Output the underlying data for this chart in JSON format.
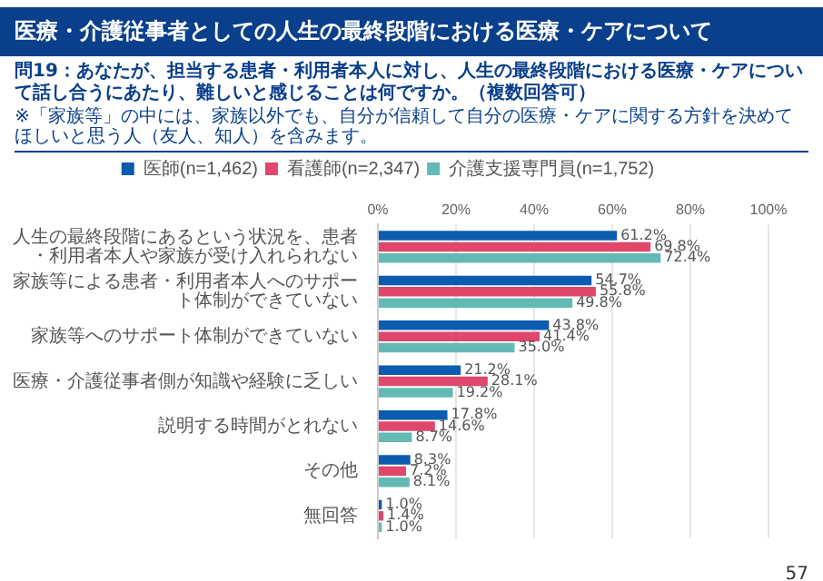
{
  "chart_data": {
    "type": "bar",
    "orientation": "horizontal",
    "title": "医療・介護従事者としての人生の最終段階における医療・ケアについて",
    "subtitle": "問19：あなたが、担当する患者・利用者本人に対し、人生の最終段階における医療・ケアについて話し合うにあたり、難しいと感じることは何ですか。（複数回答可）",
    "annotations": [
      "※「家族等」の中には、家族以外でも、自分が信頼して自分の医療・ケアに関する方針を決めてほしいと思う人（友人、知人）を含みます。",
      "57"
    ],
    "categories": [
      "人生の最終段階にあるという状況を、患者・利用者本人や家族が受け入れられない",
      "家族等による患者・利用者本人へのサポート体制ができていない",
      "家族等へのサポート体制ができていない",
      "医療・介護従事者側が知識や経験に乏しい",
      "説明する時間がとれない",
      "その他",
      "無回答"
    ],
    "series": [
      {
        "name": "医師(n=1,462)",
        "color": "#0b5cb0",
        "values": [
          61.2,
          54.7,
          43.8,
          21.2,
          17.8,
          8.3,
          1.0
        ],
        "value_labels": [
          "61.2%",
          "54.7%",
          "43.8%",
          "21.2%",
          "17.8%",
          "8.3%",
          "1.0%"
        ]
      },
      {
        "name": "看護師(n=2,347)",
        "color": "#e0476b",
        "values": [
          69.8,
          55.8,
          41.4,
          28.1,
          14.6,
          7.2,
          1.4
        ],
        "value_labels": [
          "69.8%",
          "55.8%",
          "41.4%",
          "28.1%",
          "14.6%",
          "7.2%",
          "1.4%"
        ]
      },
      {
        "name": "介護支援専門員(n=1,752)",
        "color": "#63bab5",
        "values": [
          72.4,
          49.8,
          35.0,
          19.2,
          8.7,
          8.1,
          1.0
        ],
        "value_labels": [
          "72.4%",
          "49.8%",
          "35.0%",
          "19.2%",
          "8.7%",
          "8.1%",
          "1.0%"
        ]
      }
    ],
    "xlim": [
      0,
      100
    ],
    "xticks": [
      {
        "value": 0,
        "label": "0%"
      },
      {
        "value": 20,
        "label": "20%"
      },
      {
        "value": 40,
        "label": "40%"
      },
      {
        "value": 60,
        "label": "60%"
      },
      {
        "value": 80,
        "label": "80%"
      },
      {
        "value": 100,
        "label": "100%"
      }
    ],
    "grid": "x",
    "legend": "top"
  }
}
